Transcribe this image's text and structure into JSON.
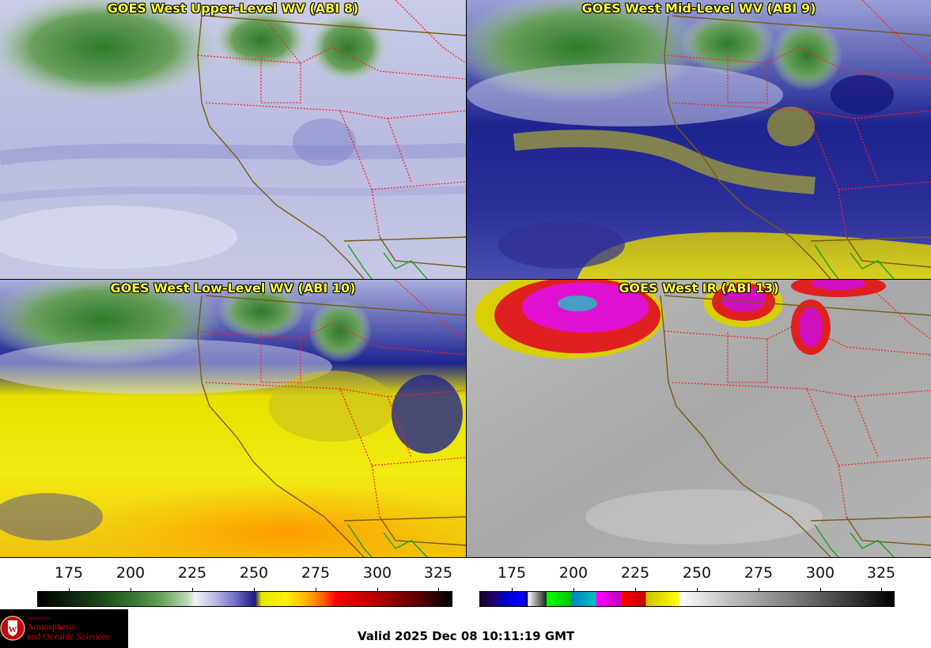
{
  "panels": [
    {
      "title": "GOES West Upper-Level WV (ABI 8)"
    },
    {
      "title": "GOES West Mid-Level WV (ABI 9)"
    },
    {
      "title": "GOES West Low-Level WV (ABI 10)"
    },
    {
      "title": "GOES West IR (ABI 13)"
    }
  ],
  "colorbars": {
    "wv": {
      "ticks": [
        "175",
        "200",
        "225",
        "250",
        "275",
        "300",
        "325"
      ]
    },
    "ir": {
      "ticks": [
        "175",
        "200",
        "225",
        "250",
        "275",
        "300",
        "325"
      ]
    }
  },
  "logo": {
    "small": "Department of",
    "line1": "Atmospheric",
    "line2": "and Oceanic Sciences"
  },
  "footer": {
    "valid": "Valid 2025 Dec 08 10:11:19 GMT"
  },
  "colors": {
    "title": "#ffff33",
    "state_borders": "#ff2020",
    "coastline": "#7a5a10",
    "mexico_border": "#1aa01a"
  }
}
